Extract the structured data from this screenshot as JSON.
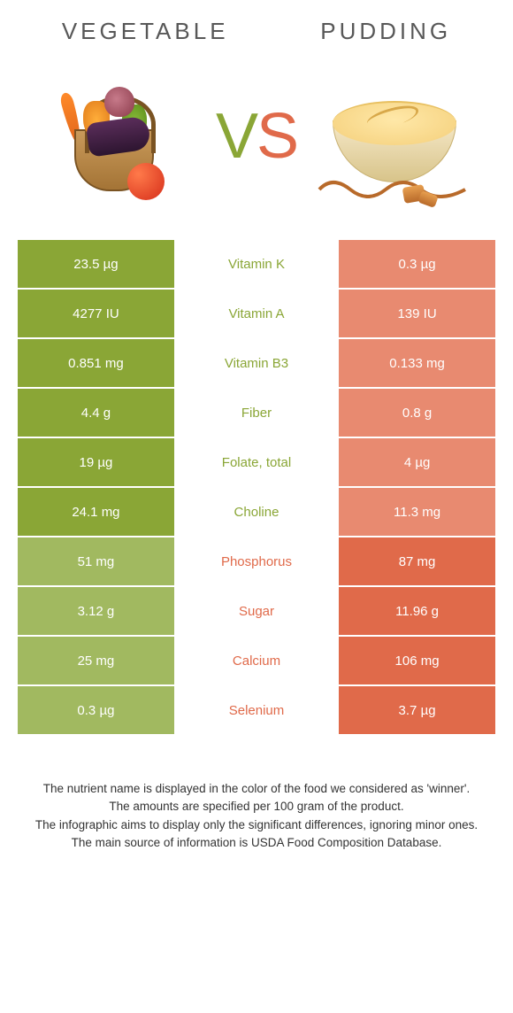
{
  "header": {
    "left": "VEGETABLE",
    "right": "PUDDING"
  },
  "vs": {
    "v": "V",
    "s": "S"
  },
  "colors": {
    "green": "#8aa636",
    "orange": "#e06a4a",
    "green_loser": "#a1b960",
    "orange_loser": "#e88a70"
  },
  "rows": [
    {
      "label": "Vitamin K",
      "left": "23.5 µg",
      "right": "0.3 µg",
      "winner": "left"
    },
    {
      "label": "Vitamin A",
      "left": "4277 IU",
      "right": "139 IU",
      "winner": "left"
    },
    {
      "label": "Vitamin B3",
      "left": "0.851 mg",
      "right": "0.133 mg",
      "winner": "left"
    },
    {
      "label": "Fiber",
      "left": "4.4 g",
      "right": "0.8 g",
      "winner": "left"
    },
    {
      "label": "Folate, total",
      "left": "19 µg",
      "right": "4 µg",
      "winner": "left"
    },
    {
      "label": "Choline",
      "left": "24.1 mg",
      "right": "11.3 mg",
      "winner": "left"
    },
    {
      "label": "Phosphorus",
      "left": "51 mg",
      "right": "87 mg",
      "winner": "right"
    },
    {
      "label": "Sugar",
      "left": "3.12 g",
      "right": "11.96 g",
      "winner": "right"
    },
    {
      "label": "Calcium",
      "left": "25 mg",
      "right": "106 mg",
      "winner": "right"
    },
    {
      "label": "Selenium",
      "left": "0.3 µg",
      "right": "3.7 µg",
      "winner": "right"
    }
  ],
  "footer": {
    "l1": "The nutrient name is displayed in the color of the food we considered as 'winner'.",
    "l2": "The amounts are specified per 100 gram of the product.",
    "l3": "The infographic aims to display only the significant differences, ignoring minor ones.",
    "l4": "The main source of information is USDA Food Composition Database."
  }
}
